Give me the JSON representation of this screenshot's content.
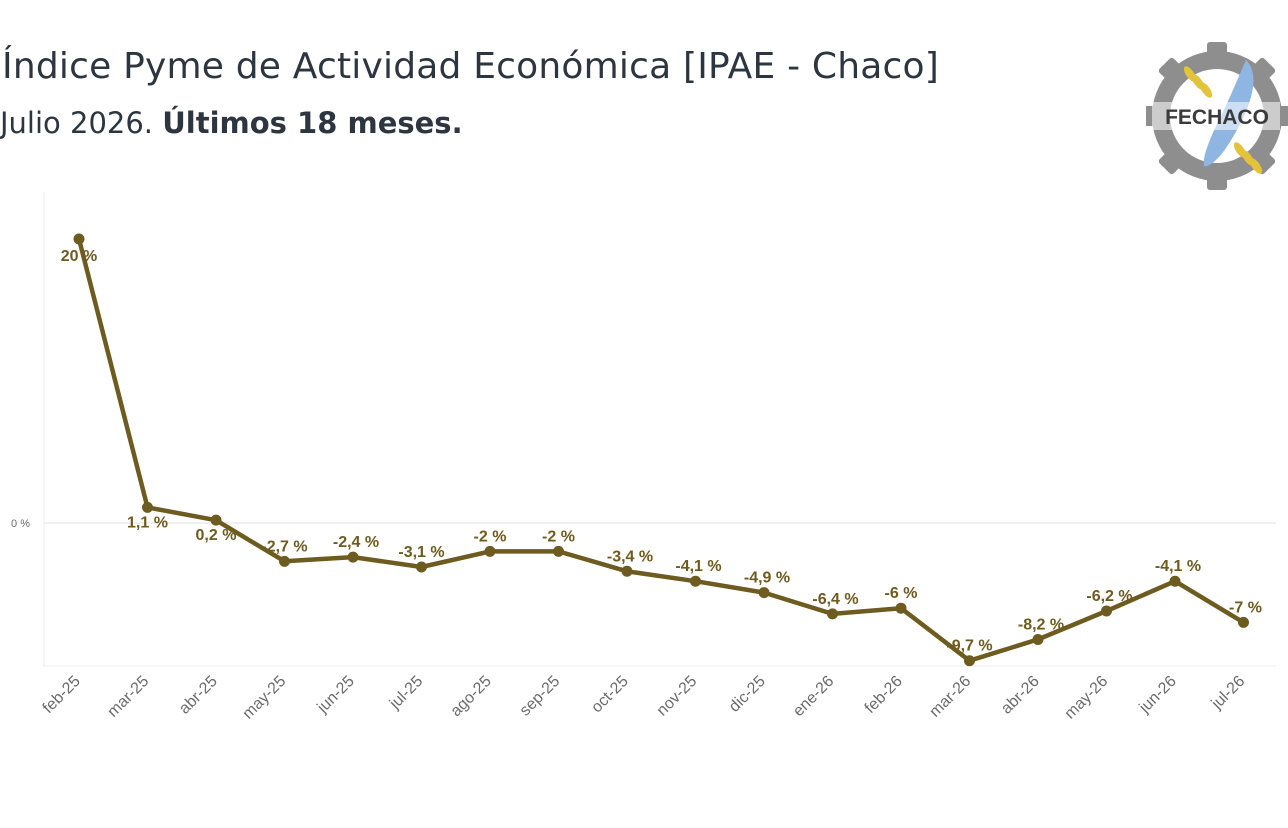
{
  "header": {
    "title": "Índice Pyme de Actividad Económica [IPAE - Chaco]",
    "subtitle_regular": "Julio 2026. ",
    "subtitle_bold": "Últimos 18 meses."
  },
  "logo": {
    "text": "FECHACO",
    "icon": "gear-wheat-logo"
  },
  "colors": {
    "line": "#6e5b1f",
    "label": "#6e5b1f",
    "title": "#2d3540",
    "gear": "#8e8e8e",
    "wheat": "#e2c33a",
    "feather": "#8fb5e3"
  },
  "chart_data": {
    "type": "line",
    "title": "Índice Pyme de Actividad Económica [IPAE - Chaco]",
    "subtitle": "Julio 2026. Últimos 18 meses.",
    "xlabel": "",
    "ylabel": "",
    "categories": [
      "feb-25",
      "mar-25",
      "abr-25",
      "may-25",
      "jun-25",
      "jul-25",
      "ago-25",
      "sep-25",
      "oct-25",
      "nov-25",
      "dic-25",
      "ene-26",
      "feb-26",
      "mar-26",
      "abr-26",
      "may-26",
      "jun-26",
      "jul-26"
    ],
    "series": [
      {
        "values": [
          20,
          1.1,
          0.2,
          -2.7,
          -2.4,
          -3.1,
          -2,
          -2,
          -3.4,
          -4.1,
          -4.9,
          -6.4,
          -6,
          -9.7,
          -8.2,
          -6.2,
          -4.1,
          -7
        ],
        "labels": [
          "20 %",
          "1,1 %",
          "0,2 %",
          "-2,7 %",
          "-2,4 %",
          "-3,1 %",
          "-2 %",
          "-2 %",
          "-3,4 %",
          "-4,1 %",
          "-4,9 %",
          "-6,4 %",
          "-6 %",
          "-9,7 %",
          "-8,2 %",
          "-6,2 %",
          "-4,1 %",
          "-7 %"
        ]
      }
    ],
    "yticks": [
      "0 %"
    ],
    "ylim": [
      -10,
      21
    ],
    "grid": true,
    "legend": "none"
  }
}
